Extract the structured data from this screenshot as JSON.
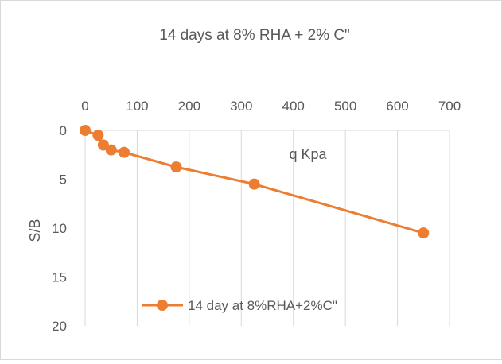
{
  "chart_data": {
    "type": "line",
    "title": "14 days at 8% RHA + 2% C\"",
    "xlabel": "q Kpa",
    "ylabel": "S/B",
    "xlim": [
      0,
      700
    ],
    "ylim": [
      0,
      20
    ],
    "y_reversed": true,
    "x_axis_position": "top",
    "x_ticks": [
      0,
      100,
      200,
      300,
      400,
      500,
      600,
      700
    ],
    "y_ticks": [
      0,
      5,
      10,
      15,
      20
    ],
    "grid": "vertical",
    "legend_position": "bottom-left",
    "series": [
      {
        "name": "14 day at 8%RHA+2%C\"",
        "color": "#ED7D31",
        "marker": "circle",
        "x": [
          0,
          25,
          35,
          50,
          75,
          175,
          325,
          650
        ],
        "y": [
          0,
          0.5,
          1.5,
          2,
          2.25,
          3.75,
          5.5,
          10.5
        ]
      }
    ]
  }
}
